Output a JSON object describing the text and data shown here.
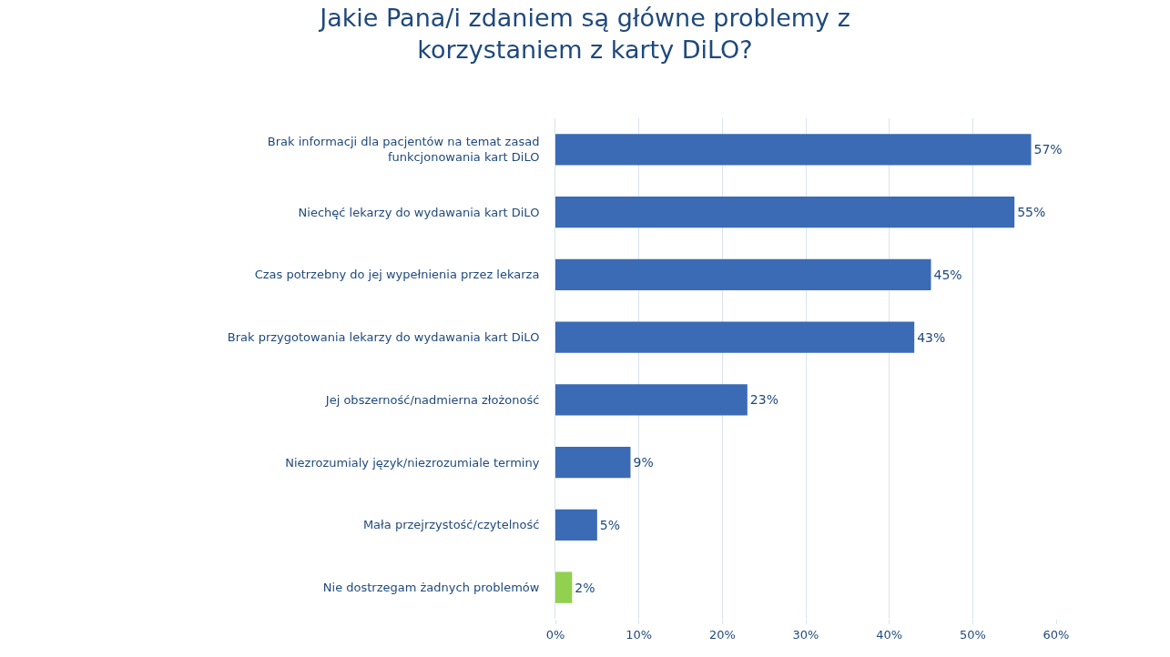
{
  "chart_data": {
    "type": "bar",
    "orientation": "horizontal",
    "title": "Jakie Pana/i zdaniem są główne problemy z korzystaniem z karty DiLO?",
    "categories": [
      "Brak informacji dla pacjentów na temat zasad funkcjonowania kart DiLO",
      "Niechęć lekarzy do wydawania kart DiLO",
      "Czas potrzebny do jej wypełnienia przez lekarza",
      "Brak przygotowania lekarzy do wydawania kart DiLO",
      "Jej obszerność/nadmierna złożoność",
      "Niezrozumialy język/niezrozumiale terminy",
      "Mała przejrzystość/czytelność",
      "Nie dostrzegam żadnych problemów"
    ],
    "values": [
      57,
      55,
      45,
      43,
      23,
      9,
      5,
      2
    ],
    "value_labels": [
      "57%",
      "55%",
      "45%",
      "43%",
      "23%",
      "9%",
      "5%",
      "2%"
    ],
    "colors": [
      "#3a6bb4",
      "#3a6bb4",
      "#3a6bb4",
      "#3a6bb4",
      "#3a6bb4",
      "#3a6bb4",
      "#3a6bb4",
      "#92d050"
    ],
    "xlim": [
      0,
      60
    ],
    "xticks": [
      {
        "value": 0,
        "label": "0%"
      },
      {
        "value": 10,
        "label": "10%"
      },
      {
        "value": 20,
        "label": "20%"
      },
      {
        "value": 30,
        "label": "30%"
      },
      {
        "value": 40,
        "label": "40%"
      },
      {
        "value": 50,
        "label": "50%"
      },
      {
        "value": 60,
        "label": "60%"
      }
    ],
    "grid": "x"
  }
}
